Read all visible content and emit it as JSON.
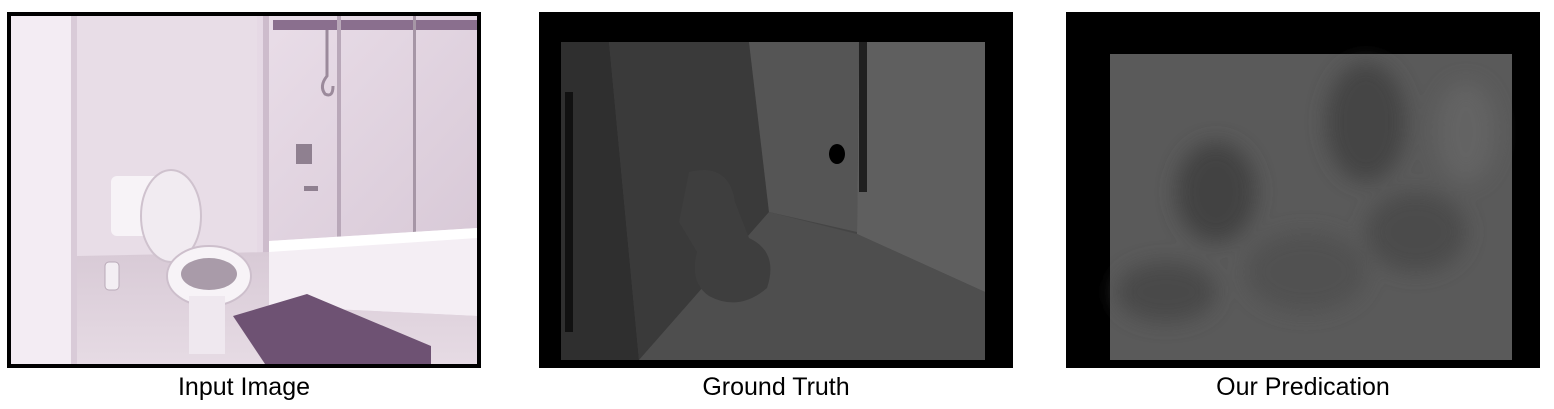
{
  "panels": [
    {
      "id": "input",
      "caption": "Input Image"
    },
    {
      "id": "ground_truth",
      "caption": "Ground Truth"
    },
    {
      "id": "prediction",
      "caption": "Our Predication"
    }
  ]
}
